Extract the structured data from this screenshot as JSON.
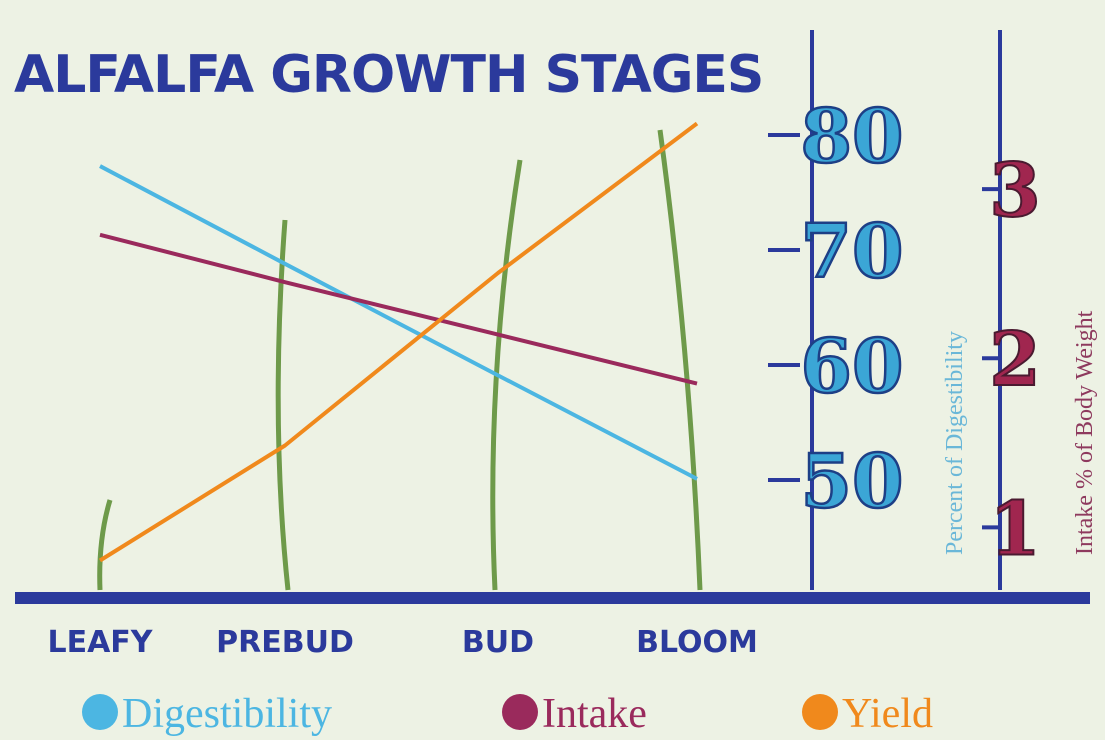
{
  "chart_data": {
    "type": "line",
    "title": "ALFALFA GROWTH STAGES",
    "categories": [
      "LEAFY",
      "PREBUD",
      "BUD",
      "BLOOM"
    ],
    "series": [
      {
        "name": "Digestibility",
        "color": "#4cb6e2",
        "values": [
          77.3,
          68.8,
          59.1,
          50.1
        ],
        "axis": "y"
      },
      {
        "name": "Intake",
        "color": "#9a2a5c",
        "values": [
          2.73,
          2.45,
          2.14,
          1.85
        ],
        "axis": "y2"
      },
      {
        "name": "Yield",
        "color": "#f0891c",
        "values": [
          43,
          53,
          68,
          81
        ],
        "axis": "y"
      }
    ],
    "ylabel": "Percent of Digestibility",
    "y2label": "Intake % of Body Weight",
    "ylim": [
      40,
      90
    ],
    "yticks": [
      50,
      60,
      70,
      80
    ],
    "y2lim": [
      0.6,
      4
    ],
    "y2ticks": [
      1,
      2,
      3
    ],
    "legend": "bottom"
  }
}
